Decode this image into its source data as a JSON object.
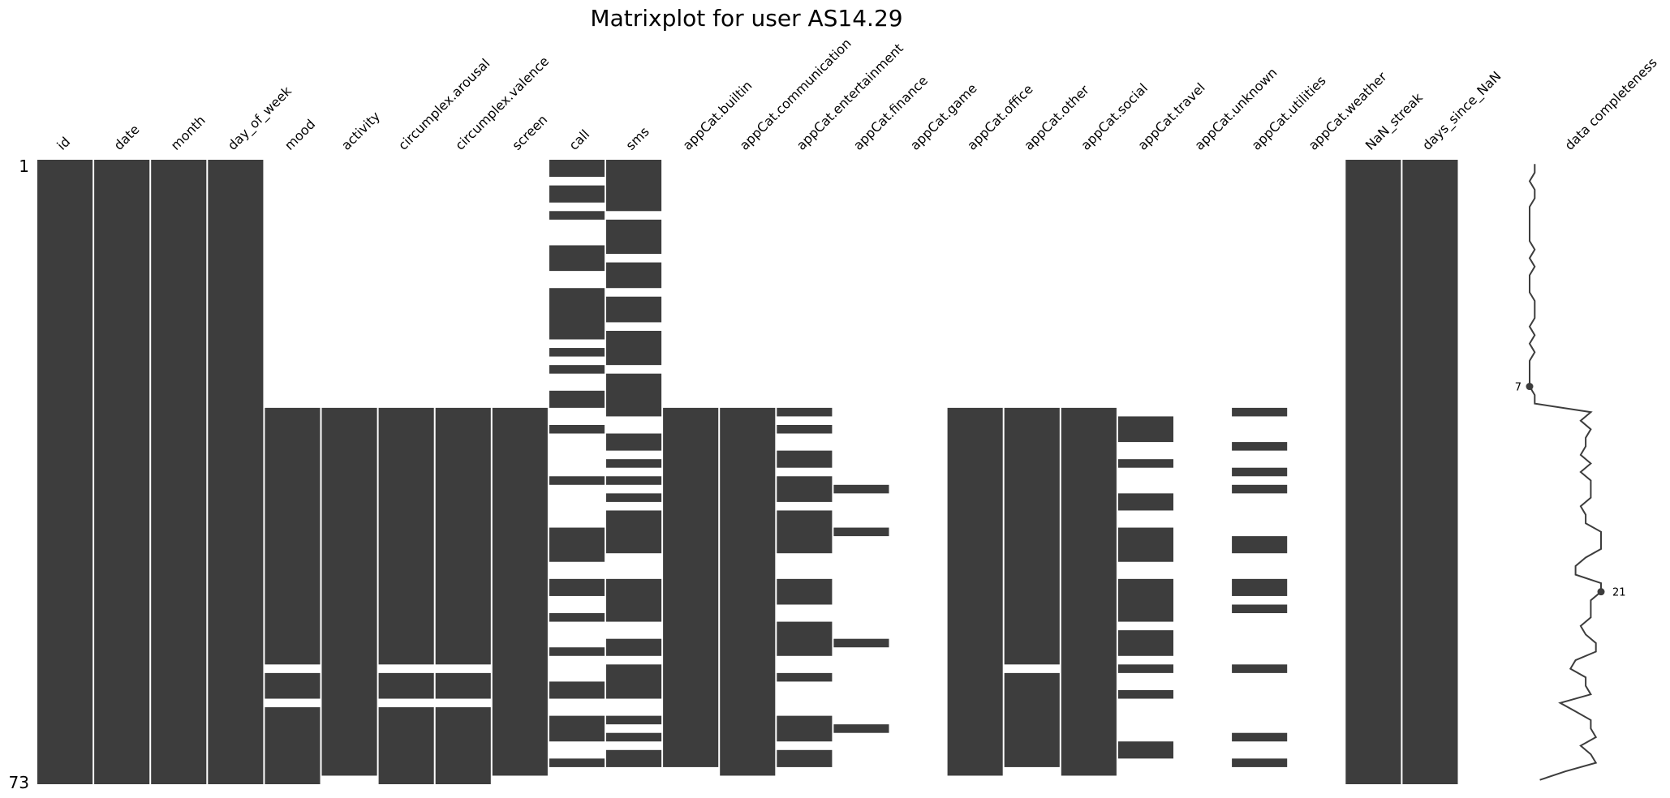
{
  "chart_data": {
    "type": "heatmap",
    "title": "Matrixplot for user AS14.29",
    "columns": [
      "id",
      "date",
      "month",
      "day_of_week",
      "mood",
      "activity",
      "circumplex.arousal",
      "circumplex.valence",
      "screen",
      "call",
      "sms",
      "appCat.builtin",
      "appCat.communication",
      "appCat.entertainment",
      "appCat.finance",
      "appCat.game",
      "appCat.office",
      "appCat.other",
      "appCat.social",
      "appCat.travel",
      "appCat.unknown",
      "appCat.utilities",
      "appCat.weather",
      "NaN_streak",
      "days_since_NaN"
    ],
    "row_first_label": "1",
    "row_last_label": "73",
    "n_rows": 73,
    "present_row_ranges": [
      [
        [
          1,
          73
        ]
      ],
      [
        [
          1,
          73
        ]
      ],
      [
        [
          1,
          73
        ]
      ],
      [
        [
          1,
          73
        ]
      ],
      [
        [
          30,
          59
        ],
        [
          61,
          63
        ],
        [
          65,
          73
        ]
      ],
      [
        [
          30,
          72
        ]
      ],
      [
        [
          30,
          59
        ],
        [
          61,
          63
        ],
        [
          65,
          73
        ]
      ],
      [
        [
          30,
          59
        ],
        [
          61,
          63
        ],
        [
          65,
          73
        ]
      ],
      [
        [
          30,
          72
        ]
      ],
      [
        [
          1,
          2
        ],
        [
          4,
          5
        ],
        [
          7,
          7
        ],
        [
          11,
          13
        ],
        [
          16,
          21
        ],
        [
          23,
          23
        ],
        [
          25,
          25
        ],
        [
          28,
          29
        ],
        [
          32,
          32
        ],
        [
          38,
          38
        ],
        [
          44,
          47
        ],
        [
          50,
          51
        ],
        [
          54,
          54
        ],
        [
          58,
          58
        ],
        [
          62,
          63
        ],
        [
          66,
          68
        ],
        [
          71,
          71
        ]
      ],
      [
        [
          1,
          6
        ],
        [
          8,
          11
        ],
        [
          13,
          15
        ],
        [
          17,
          19
        ],
        [
          21,
          24
        ],
        [
          26,
          30
        ],
        [
          33,
          34
        ],
        [
          36,
          36
        ],
        [
          38,
          38
        ],
        [
          40,
          40
        ],
        [
          42,
          46
        ],
        [
          50,
          54
        ],
        [
          57,
          58
        ],
        [
          60,
          63
        ],
        [
          66,
          66
        ],
        [
          68,
          68
        ],
        [
          70,
          71
        ]
      ],
      [
        [
          30,
          71
        ]
      ],
      [
        [
          30,
          72
        ]
      ],
      [
        [
          30,
          30
        ],
        [
          32,
          32
        ],
        [
          35,
          36
        ],
        [
          38,
          40
        ],
        [
          42,
          46
        ],
        [
          50,
          52
        ],
        [
          55,
          58
        ],
        [
          61,
          61
        ],
        [
          66,
          68
        ],
        [
          70,
          71
        ]
      ],
      [
        [
          39,
          39
        ],
        [
          44,
          44
        ],
        [
          57,
          57
        ],
        [
          67,
          67
        ]
      ],
      [],
      [
        [
          30,
          72
        ]
      ],
      [
        [
          30,
          59
        ],
        [
          61,
          71
        ]
      ],
      [
        [
          30,
          72
        ]
      ],
      [
        [
          31,
          33
        ],
        [
          36,
          36
        ],
        [
          40,
          41
        ],
        [
          44,
          47
        ],
        [
          50,
          54
        ],
        [
          56,
          58
        ],
        [
          60,
          60
        ],
        [
          63,
          63
        ],
        [
          69,
          70
        ]
      ],
      [],
      [
        [
          30,
          30
        ],
        [
          34,
          34
        ],
        [
          37,
          37
        ],
        [
          39,
          39
        ],
        [
          45,
          46
        ],
        [
          50,
          51
        ],
        [
          53,
          53
        ],
        [
          60,
          60
        ],
        [
          68,
          68
        ],
        [
          71,
          71
        ]
      ],
      [],
      [
        [
          1,
          73
        ]
      ],
      [
        [
          1,
          73
        ]
      ]
    ],
    "completeness": {
      "label": "data completeness",
      "min_label": "7",
      "max_label": "21",
      "min_row": 27,
      "max_row": 51
    },
    "colors": {
      "present": "#3d3d3d",
      "missing": "#ffffff",
      "line": "#3d3d3d"
    }
  }
}
